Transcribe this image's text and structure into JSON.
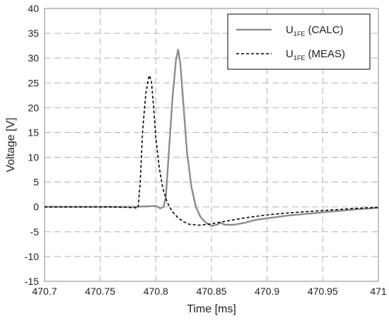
{
  "chart_data": {
    "type": "line",
    "title": "",
    "xlabel": "Time [ms]",
    "ylabel": "Voltage  [V]",
    "xlim": [
      470.7,
      471.0
    ],
    "ylim": [
      -15,
      40
    ],
    "xticks": [
      470.7,
      470.75,
      470.8,
      470.85,
      470.9,
      470.95,
      471.0
    ],
    "xtick_labels": [
      "470.7",
      "470.75",
      "470.8",
      "470.85",
      "470.9",
      "470.95",
      "471"
    ],
    "yticks": [
      -15,
      -10,
      -5,
      0,
      5,
      10,
      15,
      20,
      25,
      30,
      35,
      40
    ],
    "ytick_labels": [
      "-15",
      "-10",
      "-5",
      "0",
      "5",
      "10",
      "15",
      "20",
      "25",
      "30",
      "35",
      "40"
    ],
    "grid": true,
    "legend_position": "top-right",
    "series": [
      {
        "name_main": "U",
        "name_sub": "1FE",
        "name_suffix": " (CALC)",
        "style": "solid",
        "color": "#8c8c8c",
        "x": [
          470.7,
          470.75,
          470.78,
          470.8,
          470.804,
          470.807,
          470.809,
          470.812,
          470.815,
          470.818,
          470.82,
          470.822,
          470.825,
          470.828,
          470.832,
          470.836,
          470.84,
          470.845,
          470.85,
          470.855,
          470.858,
          470.862,
          470.87,
          470.88,
          470.89,
          470.9,
          470.92,
          470.94,
          470.96,
          470.98,
          471.0
        ],
        "y": [
          0.0,
          0.0,
          0.0,
          0.2,
          -0.3,
          0.0,
          2.0,
          12.0,
          22.0,
          29.5,
          31.7,
          29.0,
          20.0,
          11.0,
          4.0,
          0.0,
          -2.0,
          -3.2,
          -3.8,
          -3.6,
          -3.2,
          -3.6,
          -3.6,
          -3.2,
          -2.6,
          -2.3,
          -1.7,
          -1.3,
          -0.9,
          -0.5,
          -0.2
        ]
      },
      {
        "name_main": "U",
        "name_sub": "1FE",
        "name_suffix": " (MEAS)",
        "style": "dashed",
        "color": "#000000",
        "x": [
          470.7,
          470.76,
          470.784,
          470.786,
          470.788,
          470.791,
          470.794,
          470.796,
          470.798,
          470.8,
          470.803,
          470.806,
          470.81,
          470.815,
          470.82,
          470.825,
          470.83,
          470.84,
          470.85,
          470.86,
          470.87,
          470.88,
          470.9,
          470.92,
          470.94,
          470.96,
          470.98,
          471.0
        ],
        "y": [
          0.0,
          0.0,
          -0.2,
          5.0,
          15.0,
          23.0,
          26.5,
          25.5,
          20.0,
          14.0,
          8.0,
          4.0,
          1.0,
          -1.0,
          -2.2,
          -3.0,
          -3.5,
          -3.7,
          -3.4,
          -3.0,
          -2.6,
          -2.2,
          -1.6,
          -1.2,
          -0.9,
          -0.6,
          -0.3,
          -0.1
        ]
      }
    ]
  }
}
